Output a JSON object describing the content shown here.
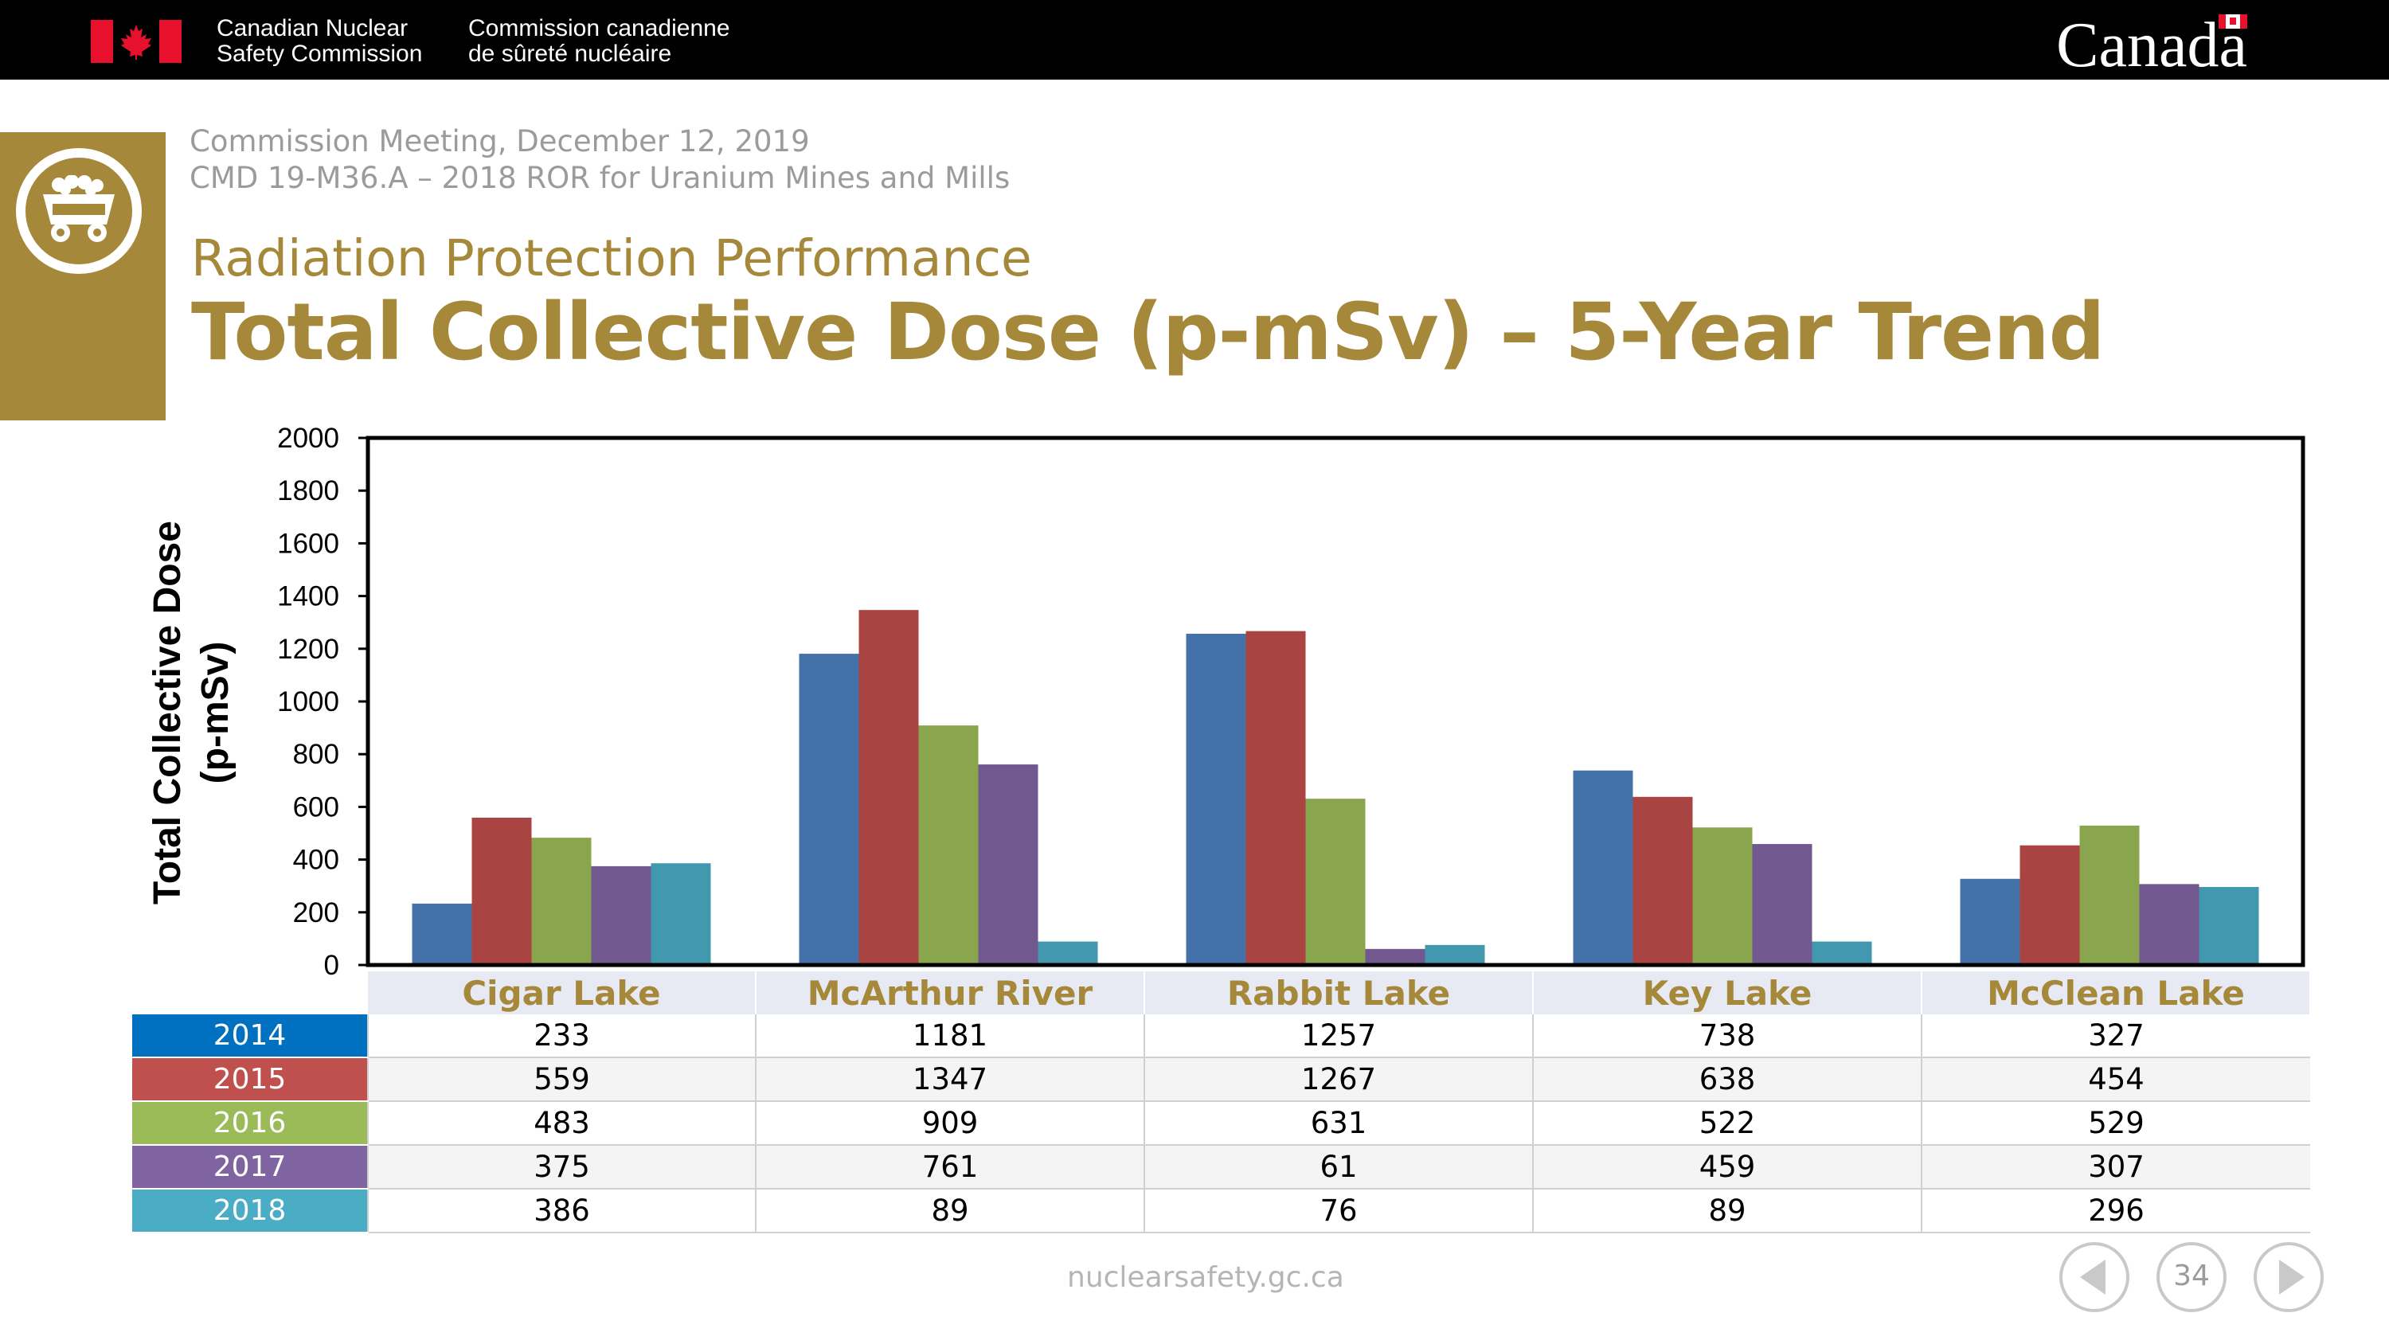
{
  "header": {
    "org_en_line1": "Canadian Nuclear",
    "org_en_line2": "Safety Commission",
    "org_fr_line1": "Commission canadienne",
    "org_fr_line2": "de sûreté nucléaire",
    "wordmark": "Canada"
  },
  "slide": {
    "meeting": "Commission Meeting, December 12, 2019",
    "cmd": "CMD 19-M36.A – 2018 ROR for Uranium Mines and Mills",
    "section": "Radiation Protection Performance",
    "title": "Total Collective Dose (p-mSv) – 5-Year Trend"
  },
  "colors": {
    "accent": "#a6883a",
    "series": [
      "#4472a8",
      "#aa4443",
      "#89a54e",
      "#71588f",
      "#4198af"
    ],
    "year_cells": [
      "#0070c0",
      "#c0504d",
      "#9bbb59",
      "#8064a2",
      "#4bacc6"
    ]
  },
  "chart_data": {
    "type": "bar",
    "categories": [
      "Cigar Lake",
      "McArthur River",
      "Rabbit Lake",
      "Key Lake",
      "McClean Lake"
    ],
    "series": [
      {
        "name": "2014",
        "values": [
          233,
          1181,
          1257,
          738,
          327
        ]
      },
      {
        "name": "2015",
        "values": [
          559,
          1347,
          1267,
          638,
          454
        ]
      },
      {
        "name": "2016",
        "values": [
          483,
          909,
          631,
          522,
          529
        ]
      },
      {
        "name": "2017",
        "values": [
          375,
          761,
          61,
          459,
          307
        ]
      },
      {
        "name": "2018",
        "values": [
          386,
          89,
          76,
          89,
          296
        ]
      }
    ],
    "ylabel_line1": "Total Collective Dose",
    "ylabel_line2": "(p-mSv)",
    "ylim": [
      0,
      2000
    ],
    "yticks": [
      "0",
      "200",
      "400",
      "600",
      "800",
      "1000",
      "1200",
      "1400",
      "1600",
      "1800",
      "2000"
    ],
    "legend": "data-table-below",
    "grid": false
  },
  "footer": {
    "url": "nuclearsafety.gc.ca",
    "page": "34"
  }
}
